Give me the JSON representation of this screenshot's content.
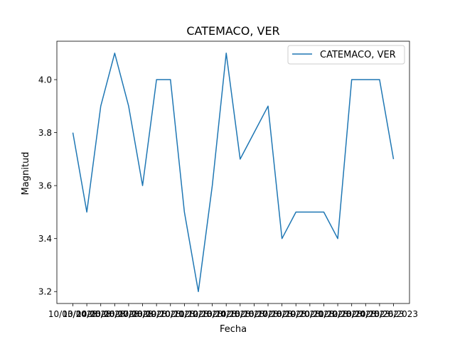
{
  "chart_data": {
    "type": "line",
    "title": "CATEMACO, VER",
    "xlabel": "Fecha",
    "ylabel": "Magnitud",
    "categories": [
      "10/03/2023",
      "10/04/2023",
      "10/05/2023",
      "10/06/2023",
      "10/07/2023",
      "10/08/2023",
      "10/09/2023",
      "10/10/2023",
      "10/11/2023",
      "10/12/2023",
      "10/13/2023",
      "10/14/2023",
      "10/15/2023",
      "10/16/2023",
      "10/17/2023",
      "10/18/2023",
      "10/19/2023",
      "10/20/2023",
      "10/21/2023",
      "10/22/2023",
      "10/23/2023",
      "10/24/2023",
      "10/25/2023",
      "10/26/2023"
    ],
    "series": [
      {
        "name": "CATEMACO, VER",
        "values": [
          3.8,
          3.5,
          3.9,
          4.1,
          3.9,
          3.6,
          4.0,
          4.0,
          3.5,
          3.2,
          3.6,
          4.1,
          3.7,
          3.8,
          3.9,
          3.4,
          3.5,
          3.5,
          3.5,
          3.4,
          4.0,
          4.0,
          4.0,
          3.7
        ],
        "color": "#1f77b4"
      }
    ],
    "ylim": [
      3.155,
      4.145
    ],
    "yticks": [
      "3.2",
      "3.4",
      "3.6",
      "3.8",
      "4.0"
    ],
    "grid": false,
    "legend_position": "upper-right"
  }
}
